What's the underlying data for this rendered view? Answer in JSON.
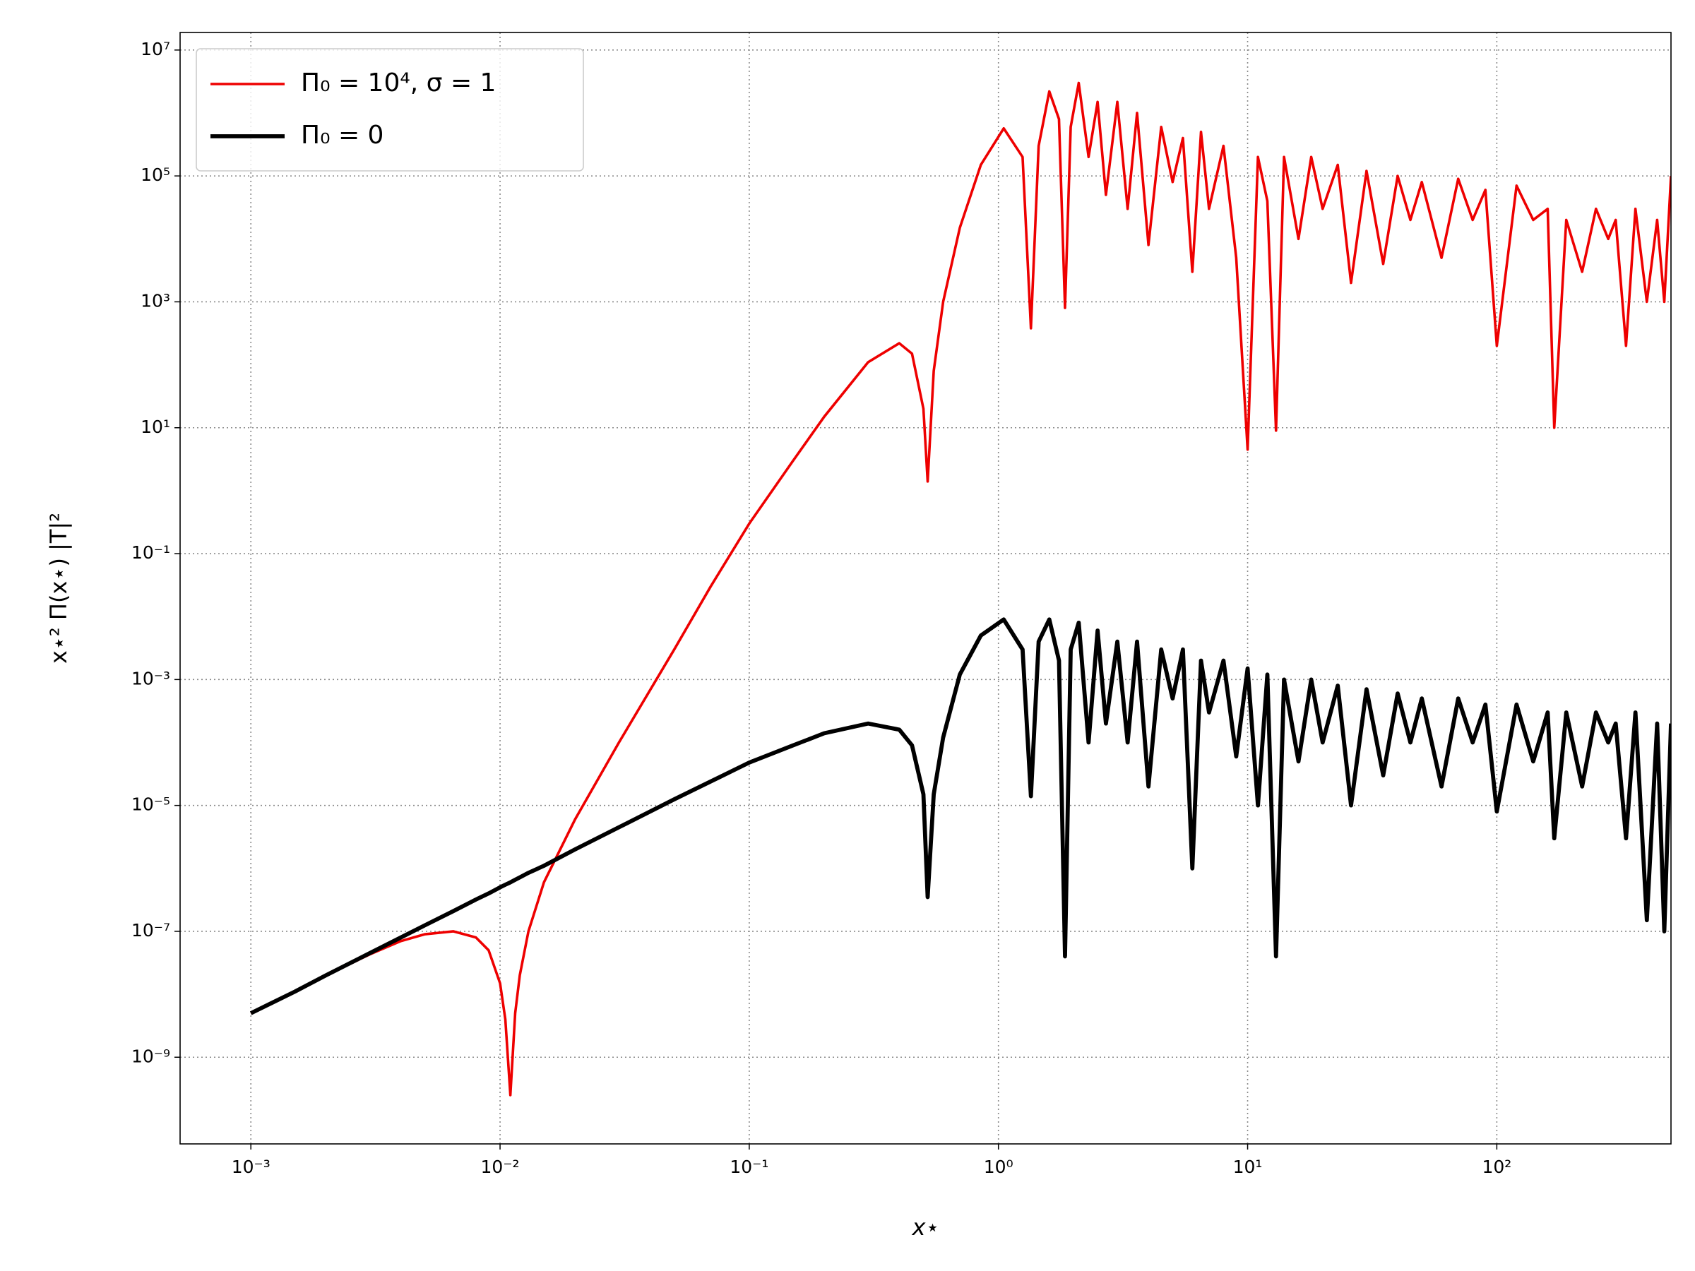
{
  "chart_data": {
    "type": "line",
    "x_label": "x⋆",
    "y_label": "x⋆² Π(x⋆) |T|²",
    "xscale": "log",
    "yscale": "log",
    "grid": true,
    "legend": "upper left",
    "xlim": [
      0.00052,
      500
    ],
    "ylim": [
      4.2e-11,
      19000000.0
    ],
    "xticks": [
      {
        "value": 0.001,
        "label": "10⁻³"
      },
      {
        "value": 0.01,
        "label": "10⁻²"
      },
      {
        "value": 0.1,
        "label": "10⁻¹"
      },
      {
        "value": 1,
        "label": "10⁰"
      },
      {
        "value": 10,
        "label": "10¹"
      },
      {
        "value": 100,
        "label": "10²"
      }
    ],
    "yticks": [
      {
        "value": 1e-09,
        "label": "10⁻⁹"
      },
      {
        "value": 1e-07,
        "label": "10⁻⁷"
      },
      {
        "value": 1e-05,
        "label": "10⁻⁵"
      },
      {
        "value": 0.001,
        "label": "10⁻³"
      },
      {
        "value": 0.1,
        "label": "10⁻¹"
      },
      {
        "value": 10,
        "label": "10¹"
      },
      {
        "value": 1000,
        "label": "10³"
      },
      {
        "value": 100000,
        "label": "10⁵"
      },
      {
        "value": 10000000,
        "label": "10⁷"
      }
    ],
    "x": [
      0.001,
      0.0015,
      0.002,
      0.003,
      0.004,
      0.005,
      0.0065,
      0.008,
      0.009,
      0.01,
      0.0105,
      0.011,
      0.0115,
      0.012,
      0.013,
      0.015,
      0.02,
      0.03,
      0.05,
      0.07,
      0.1,
      0.15,
      0.2,
      0.3,
      0.4,
      0.45,
      0.5,
      0.52,
      0.55,
      0.6,
      0.7,
      0.85,
      1.05,
      1.25,
      1.35,
      1.45,
      1.6,
      1.75,
      1.85,
      1.95,
      2.1,
      2.3,
      2.5,
      2.7,
      3.0,
      3.3,
      3.6,
      4.0,
      4.5,
      5.0,
      5.5,
      6.0,
      6.5,
      7.0,
      8.0,
      9.0,
      10,
      11,
      12,
      13,
      14,
      16,
      18,
      20,
      23,
      26,
      30,
      35,
      40,
      45,
      50,
      60,
      70,
      80,
      90,
      100,
      120,
      140,
      160,
      170,
      190,
      220,
      250,
      280,
      300,
      330,
      360,
      400,
      440,
      470,
      500
    ],
    "series": [
      {
        "name": "Π₀ = 10⁴, σ = 1",
        "color": "#ee0000",
        "width": 3.6,
        "values": [
          5e-09,
          1.1e-08,
          2e-08,
          4.3e-08,
          7e-08,
          9e-08,
          1e-07,
          8e-08,
          5e-08,
          1.5e-08,
          4e-09,
          2.5e-10,
          5e-09,
          2e-08,
          1e-07,
          6e-07,
          6e-06,
          0.0001,
          0.003,
          0.03,
          0.3,
          3,
          15,
          110,
          220,
          150,
          20,
          1.4,
          80,
          1000,
          15000,
          150000,
          570000,
          200000,
          380,
          300000,
          2200000,
          800000,
          800,
          600000,
          3000000,
          200000,
          1500000,
          50000,
          1500000,
          30000,
          1000000,
          8000,
          600000,
          80000,
          400000,
          3000,
          500000,
          30000,
          300000,
          5000,
          4.5,
          200000,
          40000,
          9,
          200000,
          10000,
          200000,
          30000,
          150000,
          2000,
          120000,
          4000,
          100000,
          20000,
          80000,
          5000,
          90000,
          20000,
          60000,
          200,
          70000,
          20000,
          30000,
          10,
          20000,
          3000,
          30000,
          10000,
          20000,
          200,
          30000,
          1000,
          20000,
          1000,
          100000
        ]
      },
      {
        "name": "Π₀ = 0",
        "color": "#000000",
        "width": 5.8,
        "values": [
          5e-09,
          1.1e-08,
          2e-08,
          4.5e-08,
          8e-08,
          1.25e-07,
          2.1e-07,
          3.2e-07,
          4e-07,
          5e-07,
          5.5e-07,
          6e-07,
          6.6e-07,
          7.2e-07,
          8.5e-07,
          1.1e-06,
          2e-06,
          4.5e-06,
          1.25e-05,
          2.4e-05,
          4.8e-05,
          9e-05,
          0.00014,
          0.0002,
          0.00016,
          9e-05,
          1.5e-05,
          3.5e-07,
          1.5e-05,
          0.00012,
          0.0012,
          0.005,
          0.009,
          0.003,
          1.4e-05,
          0.004,
          0.009,
          0.002,
          4e-08,
          0.003,
          0.008,
          0.0001,
          0.006,
          0.0002,
          0.004,
          0.0001,
          0.004,
          2e-05,
          0.003,
          0.0005,
          0.003,
          1e-06,
          0.002,
          0.0003,
          0.002,
          6e-05,
          0.0015,
          1e-05,
          0.0012,
          4e-08,
          0.001,
          5e-05,
          0.001,
          0.0001,
          0.0008,
          1e-05,
          0.0007,
          3e-05,
          0.0006,
          0.0001,
          0.0005,
          2e-05,
          0.0005,
          0.0001,
          0.0004,
          8e-06,
          0.0004,
          5e-05,
          0.0003,
          3e-06,
          0.0003,
          2e-05,
          0.0003,
          0.0001,
          0.0002,
          3e-06,
          0.0003,
          1.5e-07,
          0.0002,
          1e-07,
          0.0002
        ]
      }
    ]
  }
}
